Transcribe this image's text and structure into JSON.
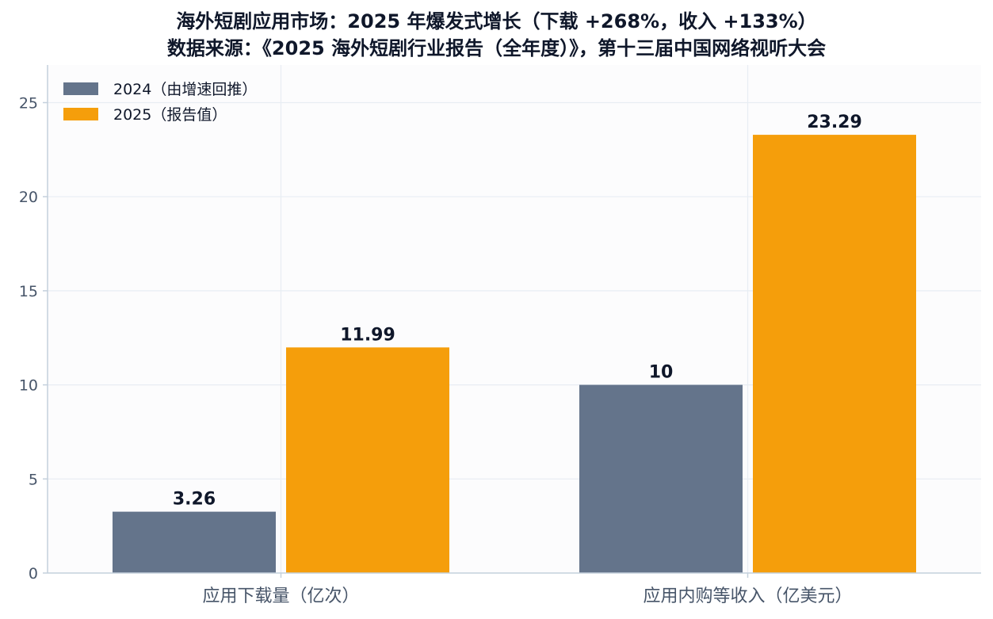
{
  "title": "海外短剧应用市场：2025 年爆发式增长（下载 +268%，收入 +133%）",
  "subtitle": "数据来源：《2025 海外短剧行业报告（全年度）》，第十三届中国网络视听大会",
  "chart_data": {
    "type": "bar",
    "categories": [
      "应用下载量（亿次）",
      "应用内购等收入（亿美元）"
    ],
    "series": [
      {
        "name": "2024（由增速回推）",
        "values": [
          3.26,
          10
        ],
        "labels": [
          "3.26",
          "10"
        ],
        "color": "#64748b"
      },
      {
        "name": "2025（报告值）",
        "values": [
          11.99,
          23.29
        ],
        "labels": [
          "11.99",
          "23.29"
        ],
        "color": "#f59e0b"
      }
    ],
    "ylim": [
      0,
      27
    ],
    "yticks": [
      "0",
      "5",
      "10",
      "15",
      "20",
      "25"
    ],
    "grid": true,
    "legend": "top-left",
    "colors": {
      "background": "#fcfcfd",
      "grid": "#e8edf3",
      "axis": "#c4d0dc",
      "text": "#0f172a",
      "tick": "#475569"
    }
  }
}
